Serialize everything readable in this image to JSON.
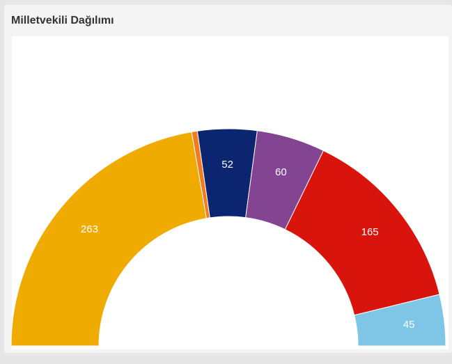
{
  "panel": {
    "title": "Milletvekili Dağılımı"
  },
  "chart_data": {
    "type": "pie",
    "variant": "semicircle-donut",
    "title": "Milletvekili Dağılımı",
    "total": 600,
    "slices": [
      {
        "value": 263,
        "color": "#f0ab00",
        "label": "263"
      },
      {
        "value": 5,
        "color": "#f47a20",
        "label": ""
      },
      {
        "value": 52,
        "color": "#0b2570",
        "label": "52"
      },
      {
        "value": 60,
        "color": "#834491",
        "label": "60"
      },
      {
        "value": 165,
        "color": "#d9140d",
        "label": "165"
      },
      {
        "value": 45,
        "color": "#7fc5e6",
        "label": "45"
      }
    ]
  }
}
